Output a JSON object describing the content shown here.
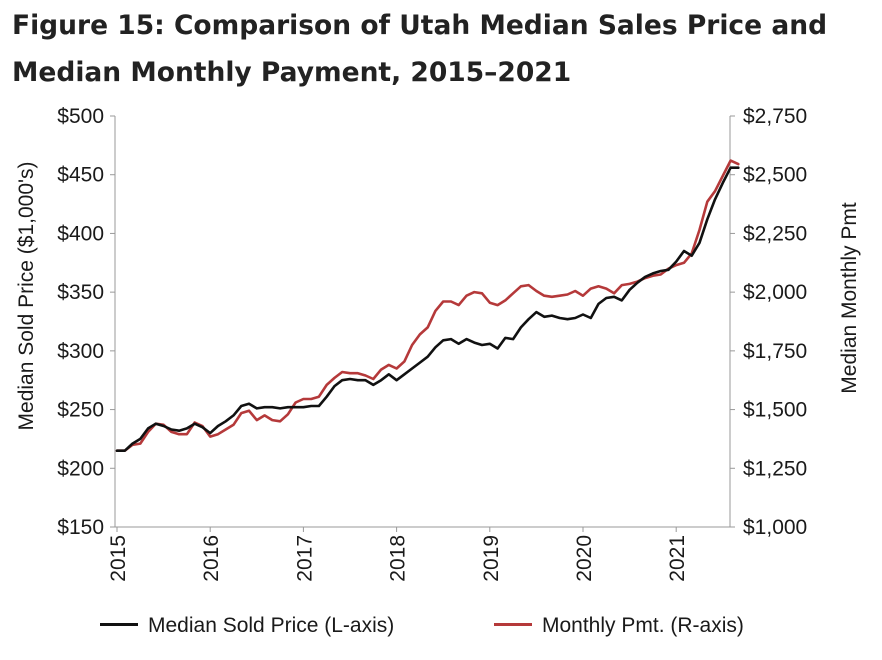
{
  "title_line1": "Figure 15: Comparison of Utah Median Sales Price and",
  "title_line2": "Median Monthly Payment, 2015–2021",
  "chart_data": {
    "type": "line",
    "title": "Figure 15: Comparison of Utah Median Sales Price and Median Monthly Payment, 2015–2021",
    "x_labels": [
      "2015",
      "2016",
      "2017",
      "2018",
      "2019",
      "2020",
      "2021"
    ],
    "left_axis": {
      "label": "Median Sold Price ($1,000's)",
      "ylim": [
        150,
        500
      ],
      "ticks": [
        500,
        450,
        400,
        350,
        300,
        250,
        200,
        150
      ],
      "tick_labels": [
        "$500",
        "$450",
        "$400",
        "$350",
        "$300",
        "$250",
        "$200",
        "$150"
      ]
    },
    "right_axis": {
      "label": "Median Monthly Pmt",
      "ylim": [
        1000,
        2750
      ],
      "ticks": [
        2750,
        2500,
        2250,
        2000,
        1750,
        1500,
        1250,
        1000
      ],
      "tick_labels": [
        "$2,750",
        "$2,500",
        "$2,250",
        "$2,000",
        "$1,750",
        "$1,500",
        "$1,250",
        "$1,000"
      ]
    },
    "grid": false,
    "legend_position": "bottom",
    "series": [
      {
        "name": "Median Sold Price (L-axis)",
        "axis": "left",
        "color": "#111111",
        "start": "2015-01",
        "values": [
          215,
          215,
          221,
          225,
          234,
          238,
          236,
          233,
          232,
          234,
          238,
          235,
          230,
          236,
          240,
          245,
          253,
          255,
          251,
          252,
          252,
          251,
          252,
          252,
          252,
          253,
          253,
          261,
          270,
          275,
          276,
          275,
          275,
          271,
          275,
          280,
          275,
          280,
          285,
          290,
          295,
          303,
          309,
          310,
          306,
          310,
          307,
          305,
          306,
          302,
          311,
          310,
          320,
          327,
          333,
          329,
          330,
          328,
          327,
          328,
          331,
          328,
          340,
          345,
          346,
          343,
          352,
          358,
          363,
          366,
          368,
          369,
          376,
          385,
          381,
          392,
          412,
          429,
          443,
          456,
          456
        ]
      },
      {
        "name": "Monthly Pmt. (R-axis)",
        "axis": "right",
        "color": "#b5393a",
        "start": "2015-01",
        "values": [
          1325,
          1325,
          1350,
          1355,
          1405,
          1440,
          1435,
          1405,
          1395,
          1395,
          1445,
          1430,
          1385,
          1395,
          1415,
          1435,
          1485,
          1495,
          1455,
          1475,
          1455,
          1450,
          1480,
          1530,
          1545,
          1545,
          1555,
          1605,
          1635,
          1660,
          1655,
          1655,
          1645,
          1630,
          1670,
          1690,
          1675,
          1705,
          1775,
          1820,
          1850,
          1920,
          1960,
          1960,
          1945,
          1985,
          2000,
          1995,
          1955,
          1945,
          1965,
          1995,
          2025,
          2030,
          2005,
          1985,
          1980,
          1985,
          1990,
          2005,
          1985,
          2015,
          2025,
          2015,
          1995,
          2030,
          2035,
          2045,
          2060,
          2070,
          2075,
          2100,
          2115,
          2125,
          2165,
          2265,
          2385,
          2430,
          2495,
          2560,
          2545
        ]
      }
    ]
  }
}
